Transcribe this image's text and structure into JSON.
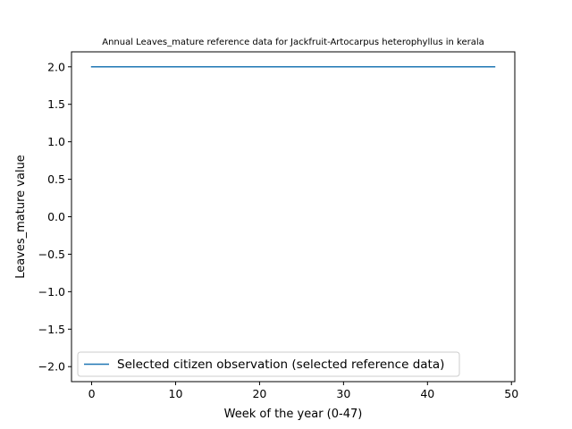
{
  "chart_data": {
    "type": "line",
    "title": "Annual Leaves_mature reference data for Jackfruit-Artocarpus heterophyllus in kerala",
    "xlabel": "Week of the year (0-47)",
    "ylabel": "Leaves_mature value",
    "xlim": [
      -2.4,
      50.4
    ],
    "ylim": [
      -2.2,
      2.2
    ],
    "xticks": [
      0,
      10,
      20,
      30,
      40,
      50
    ],
    "yticks": [
      2.0,
      1.5,
      1.0,
      0.5,
      0.0,
      -0.5,
      -1.0,
      -1.5,
      -2.0
    ],
    "xtick_labels": [
      "0",
      "10",
      "20",
      "30",
      "40",
      "50"
    ],
    "ytick_labels": [
      "2.0",
      "1.5",
      "1.0",
      "0.5",
      "0.0",
      "−0.5",
      "−1.0",
      "−1.5",
      "−2.0"
    ],
    "grid": false,
    "legend_position": "lower-left",
    "series": [
      {
        "name": "Selected citizen observation (selected reference data)",
        "color": "#1f77b4",
        "x": [
          0,
          48
        ],
        "y": [
          2,
          2
        ]
      }
    ]
  }
}
